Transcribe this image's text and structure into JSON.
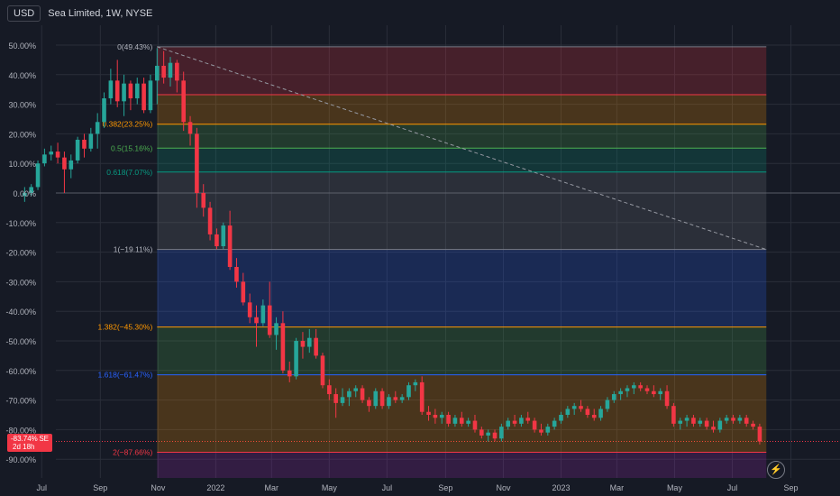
{
  "header": {
    "currency": "USD",
    "title": "Sea Limited, 1W, NYSE"
  },
  "current": {
    "value": "-83.74%",
    "symbol": "SE",
    "countdown": "2d 18h"
  },
  "colors": {
    "background": "#161a25",
    "up": "#26a69a",
    "down": "#f23645",
    "grid": "#2a2e39",
    "text": "#b2b5be"
  },
  "chart_data": {
    "type": "candlestick",
    "ylim": [
      -95,
      55
    ],
    "yticks": [
      50,
      40,
      30,
      20,
      10,
      0,
      -10,
      -20,
      -30,
      -40,
      -50,
      -60,
      -70,
      -80,
      -90
    ],
    "ytick_labels": [
      "50.00%",
      "40.00%",
      "30.00%",
      "20.00%",
      "10.00%",
      "0.00%",
      "-10.00%",
      "-20.00%",
      "-30.00%",
      "-40.00%",
      "-50.00%",
      "-60.00%",
      "-70.00%",
      "-80.00%",
      "-90.00%"
    ],
    "x_start": "2021-06-06",
    "x_end": "2023-09-10",
    "xticks": [
      {
        "date": "2021-07-01",
        "label": "Jul"
      },
      {
        "date": "2021-09-01",
        "label": "Sep"
      },
      {
        "date": "2021-11-01",
        "label": "Nov"
      },
      {
        "date": "2022-01-01",
        "label": "2022"
      },
      {
        "date": "2022-03-01",
        "label": "Mar"
      },
      {
        "date": "2022-05-01",
        "label": "May"
      },
      {
        "date": "2022-07-01",
        "label": "Jul"
      },
      {
        "date": "2022-09-01",
        "label": "Sep"
      },
      {
        "date": "2022-11-01",
        "label": "Nov"
      },
      {
        "date": "2023-01-01",
        "label": "2023"
      },
      {
        "date": "2023-03-01",
        "label": "Mar"
      },
      {
        "date": "2023-05-01",
        "label": "May"
      },
      {
        "date": "2023-07-01",
        "label": "Jul"
      },
      {
        "date": "2023-09-01",
        "label": "Sep"
      }
    ],
    "candles": [
      {
        "date": "2021-06-13",
        "o": -1,
        "h": 2,
        "l": -3,
        "c": 0
      },
      {
        "date": "2021-06-20",
        "o": 0,
        "h": 3,
        "l": -1,
        "c": 2
      },
      {
        "date": "2021-06-27",
        "o": 2,
        "h": 11,
        "l": 1,
        "c": 10
      },
      {
        "date": "2021-07-04",
        "o": 10,
        "h": 15,
        "l": 9,
        "c": 13
      },
      {
        "date": "2021-07-11",
        "o": 13,
        "h": 16,
        "l": 11,
        "c": 14
      },
      {
        "date": "2021-07-18",
        "o": 14,
        "h": 17,
        "l": 10,
        "c": 12
      },
      {
        "date": "2021-07-25",
        "o": 12,
        "h": 14,
        "l": 0,
        "c": 8
      },
      {
        "date": "2021-08-01",
        "o": 8,
        "h": 13,
        "l": 5,
        "c": 11
      },
      {
        "date": "2021-08-08",
        "o": 11,
        "h": 19,
        "l": 10,
        "c": 18
      },
      {
        "date": "2021-08-15",
        "o": 18,
        "h": 20,
        "l": 12,
        "c": 15
      },
      {
        "date": "2021-08-22",
        "o": 15,
        "h": 22,
        "l": 14,
        "c": 20
      },
      {
        "date": "2021-08-29",
        "o": 20,
        "h": 27,
        "l": 15,
        "c": 24
      },
      {
        "date": "2021-09-05",
        "o": 24,
        "h": 34,
        "l": 22,
        "c": 32
      },
      {
        "date": "2021-09-12",
        "o": 32,
        "h": 42,
        "l": 30,
        "c": 38
      },
      {
        "date": "2021-09-19",
        "o": 38,
        "h": 45,
        "l": 29,
        "c": 31
      },
      {
        "date": "2021-09-26",
        "o": 31,
        "h": 40,
        "l": 26,
        "c": 37
      },
      {
        "date": "2021-10-03",
        "o": 37,
        "h": 38,
        "l": 28,
        "c": 32
      },
      {
        "date": "2021-10-10",
        "o": 32,
        "h": 39,
        "l": 30,
        "c": 37
      },
      {
        "date": "2021-10-17",
        "o": 37,
        "h": 39,
        "l": 27,
        "c": 28
      },
      {
        "date": "2021-10-24",
        "o": 28,
        "h": 40,
        "l": 27,
        "c": 38
      },
      {
        "date": "2021-10-31",
        "o": 38,
        "h": 49,
        "l": 30,
        "c": 43
      },
      {
        "date": "2021-11-07",
        "o": 43,
        "h": 48,
        "l": 37,
        "c": 39
      },
      {
        "date": "2021-11-14",
        "o": 39,
        "h": 46,
        "l": 36,
        "c": 44
      },
      {
        "date": "2021-11-21",
        "o": 44,
        "h": 45,
        "l": 34,
        "c": 38
      },
      {
        "date": "2021-11-28",
        "o": 38,
        "h": 41,
        "l": 21,
        "c": 24
      },
      {
        "date": "2021-12-05",
        "o": 24,
        "h": 26,
        "l": 16,
        "c": 20
      },
      {
        "date": "2021-12-12",
        "o": 20,
        "h": 22,
        "l": -5,
        "c": 0
      },
      {
        "date": "2021-12-19",
        "o": 0,
        "h": 3,
        "l": -8,
        "c": -5
      },
      {
        "date": "2021-12-26",
        "o": -5,
        "h": -3,
        "l": -16,
        "c": -14
      },
      {
        "date": "2022-01-02",
        "o": -14,
        "h": -12,
        "l": -19,
        "c": -18
      },
      {
        "date": "2022-01-09",
        "o": -18,
        "h": -10,
        "l": -19,
        "c": -11
      },
      {
        "date": "2022-01-16",
        "o": -11,
        "h": -6,
        "l": -26,
        "c": -25
      },
      {
        "date": "2022-01-23",
        "o": -25,
        "h": -22,
        "l": -32,
        "c": -30
      },
      {
        "date": "2022-01-30",
        "o": -30,
        "h": -27,
        "l": -38,
        "c": -37
      },
      {
        "date": "2022-02-06",
        "o": -37,
        "h": -34,
        "l": -44,
        "c": -42
      },
      {
        "date": "2022-02-13",
        "o": -42,
        "h": -38,
        "l": -52,
        "c": -44
      },
      {
        "date": "2022-02-20",
        "o": -44,
        "h": -36,
        "l": -45,
        "c": -38
      },
      {
        "date": "2022-02-27",
        "o": -38,
        "h": -30,
        "l": -49,
        "c": -48
      },
      {
        "date": "2022-03-06",
        "o": -48,
        "h": -42,
        "l": -53,
        "c": -44
      },
      {
        "date": "2022-03-13",
        "o": -44,
        "h": -40,
        "l": -61,
        "c": -60
      },
      {
        "date": "2022-03-20",
        "o": -60,
        "h": -57,
        "l": -64,
        "c": -62
      },
      {
        "date": "2022-03-27",
        "o": -62,
        "h": -49,
        "l": -63,
        "c": -50
      },
      {
        "date": "2022-04-03",
        "o": -50,
        "h": -47,
        "l": -56,
        "c": -52
      },
      {
        "date": "2022-04-10",
        "o": -52,
        "h": -46,
        "l": -54,
        "c": -49
      },
      {
        "date": "2022-04-17",
        "o": -49,
        "h": -46,
        "l": -56,
        "c": -55
      },
      {
        "date": "2022-04-24",
        "o": -55,
        "h": -54,
        "l": -66,
        "c": -65
      },
      {
        "date": "2022-05-01",
        "o": -65,
        "h": -63,
        "l": -70,
        "c": -68
      },
      {
        "date": "2022-05-08",
        "o": -68,
        "h": -66,
        "l": -76,
        "c": -71
      },
      {
        "date": "2022-05-15",
        "o": -71,
        "h": -66,
        "l": -72,
        "c": -69
      },
      {
        "date": "2022-05-22",
        "o": -69,
        "h": -66,
        "l": -72,
        "c": -67
      },
      {
        "date": "2022-05-29",
        "o": -67,
        "h": -65,
        "l": -69,
        "c": -66
      },
      {
        "date": "2022-06-05",
        "o": -66,
        "h": -65,
        "l": -71,
        "c": -70
      },
      {
        "date": "2022-06-12",
        "o": -70,
        "h": -69,
        "l": -74,
        "c": -72
      },
      {
        "date": "2022-06-19",
        "o": -72,
        "h": -66,
        "l": -73,
        "c": -67
      },
      {
        "date": "2022-06-26",
        "o": -67,
        "h": -66,
        "l": -73,
        "c": -72
      },
      {
        "date": "2022-07-03",
        "o": -72,
        "h": -68,
        "l": -73,
        "c": -69
      },
      {
        "date": "2022-07-10",
        "o": -69,
        "h": -67,
        "l": -71,
        "c": -70
      },
      {
        "date": "2022-07-17",
        "o": -70,
        "h": -68,
        "l": -71,
        "c": -69
      },
      {
        "date": "2022-07-24",
        "o": -69,
        "h": -64,
        "l": -70,
        "c": -65
      },
      {
        "date": "2022-07-31",
        "o": -65,
        "h": -63,
        "l": -67,
        "c": -64
      },
      {
        "date": "2022-08-07",
        "o": -64,
        "h": -62,
        "l": -75,
        "c": -74
      },
      {
        "date": "2022-08-14",
        "o": -74,
        "h": -72,
        "l": -77,
        "c": -75
      },
      {
        "date": "2022-08-21",
        "o": -75,
        "h": -73,
        "l": -78,
        "c": -76
      },
      {
        "date": "2022-08-28",
        "o": -76,
        "h": -74,
        "l": -78,
        "c": -75
      },
      {
        "date": "2022-09-04",
        "o": -75,
        "h": -74,
        "l": -79,
        "c": -78
      },
      {
        "date": "2022-09-11",
        "o": -78,
        "h": -75,
        "l": -79,
        "c": -76
      },
      {
        "date": "2022-09-18",
        "o": -76,
        "h": -74,
        "l": -79,
        "c": -78
      },
      {
        "date": "2022-09-25",
        "o": -78,
        "h": -76,
        "l": -79,
        "c": -77
      },
      {
        "date": "2022-10-02",
        "o": -77,
        "h": -75,
        "l": -81,
        "c": -80
      },
      {
        "date": "2022-10-09",
        "o": -80,
        "h": -79,
        "l": -83,
        "c": -82
      },
      {
        "date": "2022-10-16",
        "o": -82,
        "h": -80,
        "l": -84,
        "c": -81
      },
      {
        "date": "2022-10-23",
        "o": -81,
        "h": -80,
        "l": -84,
        "c": -83
      },
      {
        "date": "2022-10-30",
        "o": -83,
        "h": -78,
        "l": -84,
        "c": -79
      },
      {
        "date": "2022-11-06",
        "o": -79,
        "h": -76,
        "l": -80,
        "c": -77
      },
      {
        "date": "2022-11-13",
        "o": -77,
        "h": -75,
        "l": -79,
        "c": -78
      },
      {
        "date": "2022-11-20",
        "o": -78,
        "h": -75,
        "l": -79,
        "c": -76
      },
      {
        "date": "2022-11-27",
        "o": -76,
        "h": -74,
        "l": -78,
        "c": -77
      },
      {
        "date": "2022-12-04",
        "o": -77,
        "h": -76,
        "l": -81,
        "c": -80
      },
      {
        "date": "2022-12-11",
        "o": -80,
        "h": -78,
        "l": -82,
        "c": -81
      },
      {
        "date": "2022-12-18",
        "o": -81,
        "h": -78,
        "l": -82,
        "c": -79
      },
      {
        "date": "2022-12-25",
        "o": -79,
        "h": -76,
        "l": -80,
        "c": -77
      },
      {
        "date": "2023-01-01",
        "o": -77,
        "h": -74,
        "l": -78,
        "c": -75
      },
      {
        "date": "2023-01-08",
        "o": -75,
        "h": -72,
        "l": -76,
        "c": -73
      },
      {
        "date": "2023-01-15",
        "o": -73,
        "h": -71,
        "l": -75,
        "c": -72
      },
      {
        "date": "2023-01-22",
        "o": -72,
        "h": -70,
        "l": -74,
        "c": -73
      },
      {
        "date": "2023-01-29",
        "o": -73,
        "h": -72,
        "l": -76,
        "c": -75
      },
      {
        "date": "2023-02-05",
        "o": -75,
        "h": -73,
        "l": -77,
        "c": -76
      },
      {
        "date": "2023-02-12",
        "o": -76,
        "h": -72,
        "l": -77,
        "c": -73
      },
      {
        "date": "2023-02-19",
        "o": -73,
        "h": -69,
        "l": -74,
        "c": -70
      },
      {
        "date": "2023-02-26",
        "o": -70,
        "h": -67,
        "l": -71,
        "c": -68
      },
      {
        "date": "2023-03-05",
        "o": -68,
        "h": -66,
        "l": -70,
        "c": -67
      },
      {
        "date": "2023-03-12",
        "o": -67,
        "h": -65,
        "l": -69,
        "c": -66
      },
      {
        "date": "2023-03-19",
        "o": -66,
        "h": -64,
        "l": -68,
        "c": -65
      },
      {
        "date": "2023-03-26",
        "o": -65,
        "h": -64,
        "l": -67,
        "c": -66
      },
      {
        "date": "2023-04-02",
        "o": -66,
        "h": -65,
        "l": -68,
        "c": -67
      },
      {
        "date": "2023-04-09",
        "o": -67,
        "h": -65,
        "l": -69,
        "c": -68
      },
      {
        "date": "2023-04-16",
        "o": -68,
        "h": -66,
        "l": -70,
        "c": -67
      },
      {
        "date": "2023-04-23",
        "o": -67,
        "h": -65,
        "l": -73,
        "c": -72
      },
      {
        "date": "2023-04-30",
        "o": -72,
        "h": -71,
        "l": -79,
        "c": -78
      },
      {
        "date": "2023-05-07",
        "o": -78,
        "h": -76,
        "l": -80,
        "c": -77
      },
      {
        "date": "2023-05-14",
        "o": -77,
        "h": -75,
        "l": -79,
        "c": -76
      },
      {
        "date": "2023-05-21",
        "o": -76,
        "h": -75,
        "l": -79,
        "c": -78
      },
      {
        "date": "2023-05-28",
        "o": -78,
        "h": -76,
        "l": -79,
        "c": -77
      },
      {
        "date": "2023-06-04",
        "o": -77,
        "h": -76,
        "l": -80,
        "c": -79
      },
      {
        "date": "2023-06-11",
        "o": -79,
        "h": -77,
        "l": -81,
        "c": -80
      },
      {
        "date": "2023-06-18",
        "o": -80,
        "h": -76,
        "l": -81,
        "c": -77
      },
      {
        "date": "2023-06-25",
        "o": -77,
        "h": -75,
        "l": -78,
        "c": -76
      },
      {
        "date": "2023-07-02",
        "o": -76,
        "h": -75,
        "l": -78,
        "c": -77
      },
      {
        "date": "2023-07-09",
        "o": -77,
        "h": -75,
        "l": -78,
        "c": -76
      },
      {
        "date": "2023-07-16",
        "o": -76,
        "h": -75,
        "l": -79,
        "c": -78
      },
      {
        "date": "2023-07-23",
        "o": -78,
        "h": -77,
        "l": -80,
        "c": -79
      },
      {
        "date": "2023-07-30",
        "o": -79,
        "h": -78,
        "l": -85,
        "c": -84
      }
    ],
    "fib": {
      "start_date": "2021-10-31",
      "end_date": "2023-08-06",
      "trend_line": {
        "from": 49.43,
        "to": -19.11
      },
      "levels": [
        {
          "ratio": "0",
          "value": 49.43,
          "label": "0(49.43%)",
          "color": "#787b86",
          "fill": "#f23645"
        },
        {
          "ratio": "0.236",
          "value": 33.25,
          "label": "",
          "color": "#f23645",
          "fill": "#ff9800"
        },
        {
          "ratio": "0.382",
          "value": 23.25,
          "label": "0.382(23.25%)",
          "color": "#ff9800",
          "fill": "#4caf50"
        },
        {
          "ratio": "0.5",
          "value": 15.16,
          "label": "0.5(15.16%)",
          "color": "#4caf50",
          "fill": "#089981"
        },
        {
          "ratio": "0.618",
          "value": 7.07,
          "label": "0.618(7.07%)",
          "color": "#089981",
          "fill": "#787b86"
        },
        {
          "ratio": "1",
          "value": -19.11,
          "label": "1(−19.11%)",
          "color": "#787b86",
          "fill": "#2962ff"
        },
        {
          "ratio": "1.382",
          "value": -45.3,
          "label": "1.382(−45.30%)",
          "color": "#ff9800",
          "fill": "#4caf50"
        },
        {
          "ratio": "1.618",
          "value": -61.47,
          "label": "1.618(−61.47%)",
          "color": "#2962ff",
          "fill": "#ff9800"
        },
        {
          "ratio": "2",
          "value": -87.66,
          "label": "2(−87.66%)",
          "color": "#f23645",
          "fill": "#9c27b0"
        }
      ]
    }
  }
}
